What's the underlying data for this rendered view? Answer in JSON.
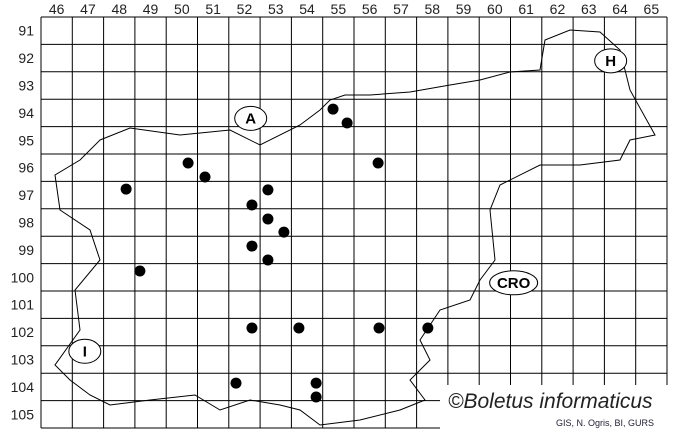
{
  "map": {
    "grid": {
      "columns": [
        "46",
        "47",
        "48",
        "49",
        "50",
        "51",
        "52",
        "53",
        "54",
        "55",
        "56",
        "57",
        "58",
        "59",
        "60",
        "61",
        "62",
        "63",
        "64",
        "65"
      ],
      "rows": [
        "91",
        "92",
        "93",
        "94",
        "95",
        "96",
        "97",
        "98",
        "99",
        "100",
        "101",
        "102",
        "103",
        "104",
        "105"
      ]
    },
    "regions": [
      {
        "label": "A",
        "col": 52.7,
        "row": 94.7
      },
      {
        "label": "H",
        "col": 64.2,
        "row": 92.6
      },
      {
        "label": "CRO",
        "col": 61.1,
        "row": 100.7
      },
      {
        "label": "I",
        "col": 47.4,
        "row": 103.2
      }
    ],
    "records": [
      {
        "col": 55.33,
        "row": 94.36
      },
      {
        "col": 55.78,
        "row": 94.87
      },
      {
        "col": 50.7,
        "row": 96.33
      },
      {
        "col": 51.24,
        "row": 96.84
      },
      {
        "col": 56.77,
        "row": 96.33
      },
      {
        "col": 48.72,
        "row": 97.28
      },
      {
        "col": 53.25,
        "row": 97.31
      },
      {
        "col": 52.74,
        "row": 97.86
      },
      {
        "col": 53.25,
        "row": 98.37
      },
      {
        "col": 53.76,
        "row": 98.85
      },
      {
        "col": 52.74,
        "row": 99.36
      },
      {
        "col": 53.25,
        "row": 99.87
      },
      {
        "col": 49.16,
        "row": 100.27
      },
      {
        "col": 52.74,
        "row": 102.35
      },
      {
        "col": 54.24,
        "row": 102.35
      },
      {
        "col": 56.8,
        "row": 102.35
      },
      {
        "col": 58.36,
        "row": 102.35
      },
      {
        "col": 52.23,
        "row": 104.36
      },
      {
        "col": 54.79,
        "row": 104.36
      },
      {
        "col": 54.79,
        "row": 104.87
      }
    ],
    "copyright": "©Boletus informaticus",
    "source": "GIS, N. Ogris, BI, GURS",
    "marker_color": "#000000"
  }
}
